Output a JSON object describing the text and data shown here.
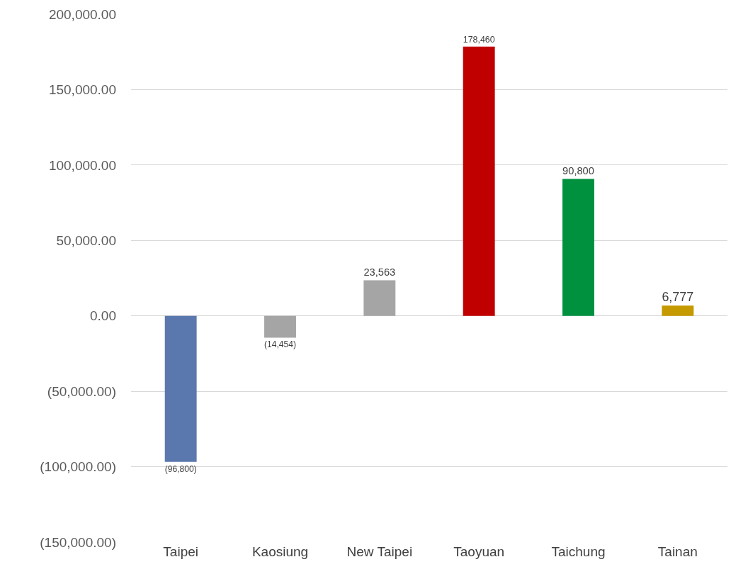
{
  "chart_data": {
    "type": "bar",
    "categories": [
      "Taipei",
      "Kaosiung",
      "New Taipei",
      "Taoyuan",
      "Taichung",
      "Tainan"
    ],
    "values": [
      -96800,
      -14454,
      23563,
      178460,
      90800,
      6777
    ],
    "colors": [
      "#5b78ae",
      "#a5a5a5",
      "#a5a5a5",
      "#c00000",
      "#00913f",
      "#c59900"
    ],
    "value_labels": [
      "(96,800)",
      "(14,454)",
      "23,563",
      "178,460",
      "90,800",
      "6,777"
    ],
    "ylim": [
      -150000,
      200000
    ],
    "yticks": [
      {
        "value": -150000,
        "label": "(150,000.00)"
      },
      {
        "value": -100000,
        "label": "(100,000.00)"
      },
      {
        "value": -50000,
        "label": "(50,000.00)"
      },
      {
        "value": 0,
        "label": "0.00"
      },
      {
        "value": 50000,
        "label": "50,000.00"
      },
      {
        "value": 100000,
        "label": "100,000.00"
      },
      {
        "value": 150000,
        "label": "150,000.00"
      },
      {
        "value": 200000,
        "label": "200,000.00"
      }
    ],
    "grid": "y",
    "legend": false
  }
}
